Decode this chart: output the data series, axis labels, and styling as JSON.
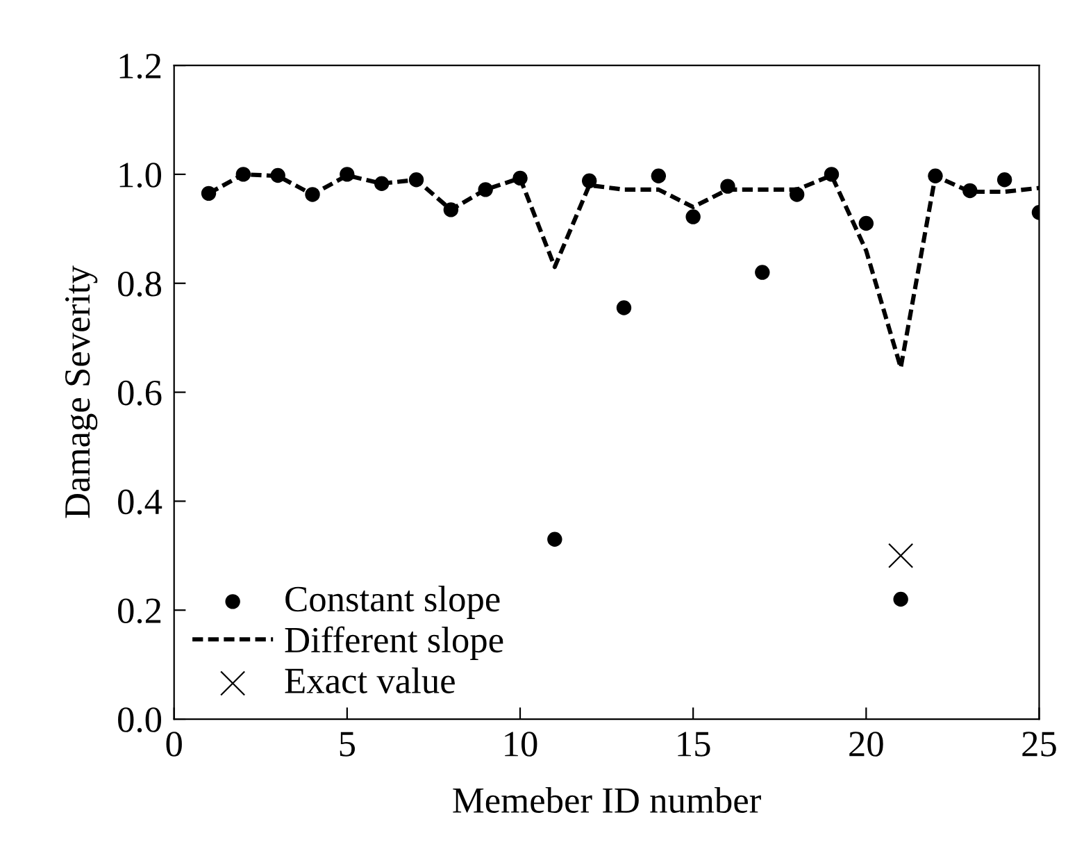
{
  "chart_data": {
    "type": "scatter",
    "xlabel": "Memeber ID number",
    "ylabel": "Damage Severity",
    "xlim": [
      0,
      25
    ],
    "ylim": [
      0.0,
      1.2
    ],
    "xticks": [
      0,
      5,
      10,
      15,
      20,
      25
    ],
    "yticks": [
      {
        "value": 0,
        "label": "0.0"
      },
      0.2,
      0.4,
      0.6,
      0.8,
      {
        "value": 1,
        "label": "1.0"
      },
      1.2
    ],
    "grid": false,
    "legend": "bottom left",
    "series": [
      {
        "name": "Constant slope",
        "marker": "circle",
        "color": "#000000",
        "x": [
          1,
          2,
          3,
          4,
          5,
          6,
          7,
          8,
          9,
          10,
          11,
          12,
          13,
          14,
          15,
          16,
          17,
          18,
          19,
          20,
          21,
          22,
          23,
          24,
          25
        ],
        "values": [
          0.965,
          1.0,
          0.998,
          0.963,
          1.0,
          0.983,
          0.99,
          0.935,
          0.972,
          0.993,
          0.33,
          0.988,
          0.755,
          0.997,
          0.922,
          0.978,
          0.82,
          0.963,
          1.0,
          0.91,
          0.22,
          0.997,
          0.97,
          0.99,
          0.93
        ]
      },
      {
        "name": "Different slope",
        "type": "line",
        "line_style": "dashed",
        "color": "#000000",
        "x": [
          1,
          2,
          3,
          4,
          5,
          6,
          7,
          8,
          9,
          10,
          11,
          12,
          13,
          14,
          15,
          16,
          17,
          18,
          19,
          20,
          21,
          22,
          23,
          24,
          25
        ],
        "values": [
          0.965,
          1.0,
          0.997,
          0.963,
          0.998,
          0.983,
          0.99,
          0.935,
          0.972,
          0.993,
          0.83,
          0.98,
          0.972,
          0.972,
          0.94,
          0.972,
          0.972,
          0.972,
          0.998,
          0.86,
          0.645,
          0.997,
          0.968,
          0.968,
          0.975
        ]
      },
      {
        "name": "Exact value",
        "marker": "cross",
        "color": "#000000",
        "x": [
          21
        ],
        "values": [
          0.3
        ]
      }
    ]
  }
}
